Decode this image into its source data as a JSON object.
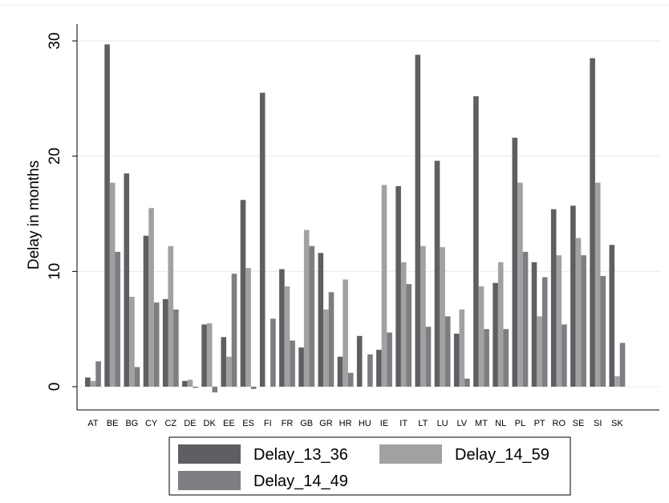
{
  "chart_data": {
    "type": "bar",
    "title": "",
    "xlabel": "",
    "ylabel": "Delay in months",
    "ylim": [
      -2,
      32
    ],
    "yticks": [
      0,
      10,
      20,
      30
    ],
    "grid": true,
    "legend_position": "bottom",
    "categories": [
      "AT",
      "BE",
      "BG",
      "CY",
      "CZ",
      "DE",
      "DK",
      "EE",
      "ES",
      "FI",
      "FR",
      "GB",
      "GR",
      "HR",
      "HU",
      "IE",
      "IT",
      "LT",
      "LU",
      "LV",
      "MT",
      "NL",
      "PL",
      "PT",
      "RO",
      "SE",
      "SI",
      "SK"
    ],
    "series": [
      {
        "name": "Delay_13_36",
        "color": "#5f5f63",
        "values": [
          0.8,
          29.7,
          18.5,
          13.1,
          7.6,
          0.5,
          5.4,
          4.3,
          16.2,
          25.5,
          10.2,
          3.4,
          11.6,
          2.6,
          4.4,
          3.2,
          17.4,
          28.8,
          19.6,
          4.6,
          25.2,
          9.0,
          21.6,
          10.8,
          15.4,
          15.7,
          28.5,
          12.3
        ]
      },
      {
        "name": "Delay_14_59",
        "color": "#a1a1a1",
        "values": [
          0.5,
          17.7,
          7.8,
          15.5,
          12.2,
          0.6,
          5.5,
          2.6,
          10.3,
          0.0,
          8.7,
          13.6,
          6.7,
          9.3,
          0.0,
          17.5,
          10.8,
          12.2,
          12.1,
          6.7,
          8.7,
          10.8,
          17.7,
          6.1,
          11.4,
          12.9,
          17.7,
          0.9
        ]
      },
      {
        "name": "Delay_14_49",
        "color": "#7e7e82",
        "values": [
          2.2,
          11.7,
          1.7,
          7.3,
          6.7,
          -0.1,
          -0.5,
          9.8,
          -0.2,
          5.9,
          4.0,
          12.2,
          8.2,
          1.2,
          2.8,
          4.7,
          8.9,
          5.2,
          6.1,
          0.7,
          5.0,
          5.0,
          11.7,
          9.5,
          5.4,
          11.4,
          9.6,
          3.8
        ]
      }
    ]
  }
}
